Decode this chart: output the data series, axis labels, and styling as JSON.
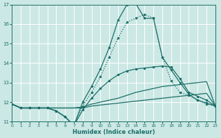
{
  "xlabel": "Humidex (Indice chaleur)",
  "bg_color": "#cce8e4",
  "grid_color": "#ffffff",
  "line_color": "#1a6e68",
  "xlim": [
    0,
    23
  ],
  "ylim": [
    11,
    17
  ],
  "yticks": [
    11,
    12,
    13,
    14,
    15,
    16,
    17
  ],
  "xticks": [
    0,
    1,
    2,
    3,
    4,
    5,
    6,
    7,
    8,
    9,
    10,
    11,
    12,
    13,
    14,
    15,
    16,
    17,
    18,
    19,
    20,
    21,
    22,
    23
  ],
  "curves": [
    {
      "x": [
        0,
        1,
        2,
        3,
        4,
        5,
        6,
        7,
        8,
        9,
        10,
        11,
        12,
        13,
        14,
        15,
        16,
        17,
        18,
        19,
        20,
        21,
        22,
        23
      ],
      "y": [
        11.9,
        11.7,
        11.7,
        11.7,
        11.7,
        11.7,
        11.7,
        11.7,
        11.7,
        11.8,
        11.85,
        11.9,
        11.95,
        12.0,
        12.05,
        12.1,
        12.15,
        12.2,
        12.25,
        12.3,
        12.35,
        12.4,
        12.45,
        11.8
      ],
      "ls": "-",
      "marker": null,
      "ms": 0,
      "lw": 0.9
    },
    {
      "x": [
        0,
        1,
        2,
        3,
        4,
        5,
        6,
        7,
        8,
        9,
        10,
        11,
        12,
        13,
        14,
        15,
        16,
        17,
        18,
        19,
        20,
        21,
        22,
        23
      ],
      "y": [
        11.9,
        11.7,
        11.7,
        11.7,
        11.7,
        11.7,
        11.7,
        11.7,
        11.75,
        11.9,
        12.0,
        12.1,
        12.2,
        12.35,
        12.5,
        12.6,
        12.7,
        12.8,
        12.85,
        12.9,
        12.95,
        13.0,
        13.05,
        11.8
      ],
      "ls": "-",
      "marker": null,
      "ms": 0,
      "lw": 0.9
    },
    {
      "x": [
        0,
        1,
        2,
        3,
        4,
        5,
        6,
        7,
        8,
        9,
        10,
        11,
        12,
        13,
        14,
        15,
        16,
        17,
        18,
        19,
        20,
        21,
        22,
        23
      ],
      "y": [
        11.9,
        11.7,
        11.7,
        11.7,
        11.7,
        11.55,
        11.25,
        10.8,
        11.6,
        12.2,
        12.7,
        13.1,
        13.4,
        13.6,
        13.7,
        13.75,
        13.8,
        13.85,
        13.8,
        13.2,
        12.5,
        12.3,
        12.1,
        11.8
      ],
      "ls": "-",
      "marker": "o",
      "ms": 2.0,
      "lw": 0.9
    },
    {
      "x": [
        0,
        1,
        2,
        3,
        4,
        5,
        6,
        7,
        8,
        9,
        10,
        11,
        12,
        13,
        14,
        15,
        16,
        17,
        18,
        19,
        20,
        21,
        22,
        23
      ],
      "y": [
        11.9,
        11.7,
        11.7,
        11.7,
        11.7,
        11.55,
        11.25,
        10.8,
        11.8,
        12.5,
        13.3,
        14.3,
        15.3,
        16.1,
        16.3,
        16.5,
        16.3,
        14.3,
        13.1,
        12.5,
        12.35,
        12.1,
        11.9,
        11.8
      ],
      "ls": ":",
      "marker": "o",
      "ms": 2.0,
      "lw": 0.9
    },
    {
      "x": [
        0,
        1,
        2,
        3,
        4,
        5,
        6,
        7,
        8,
        9,
        10,
        11,
        12,
        13,
        14,
        15,
        16,
        17,
        18,
        19,
        20,
        21,
        22,
        23
      ],
      "y": [
        11.9,
        11.7,
        11.7,
        11.7,
        11.7,
        11.55,
        11.25,
        10.8,
        12.0,
        12.8,
        13.7,
        14.8,
        16.2,
        17.0,
        17.05,
        16.3,
        16.3,
        14.3,
        13.65,
        13.0,
        12.4,
        12.1,
        11.95,
        11.8
      ],
      "ls": "-",
      "marker": "o",
      "ms": 2.0,
      "lw": 0.9
    }
  ]
}
